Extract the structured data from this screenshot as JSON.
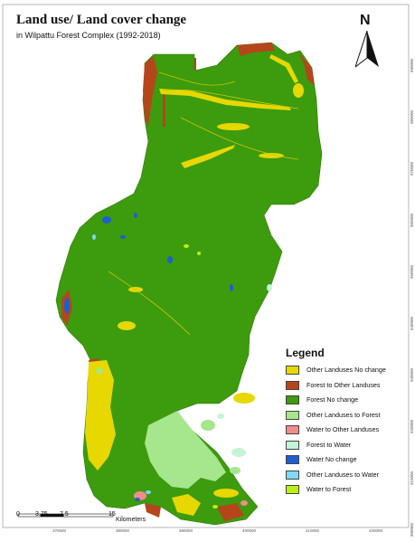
{
  "map": {
    "title": "Land use/ Land cover change",
    "subtitle": "in Wilpattu Forest Complex (1992-2018)",
    "north_label": "N",
    "legend": {
      "title": "Legend",
      "items": [
        {
          "label": "Other Landuses No change",
          "color": "#e6d800"
        },
        {
          "label": "Forest to Other Landuses",
          "color": "#b5461b"
        },
        {
          "label": "Forest No change",
          "color": "#3d9b0e"
        },
        {
          "label": "Other Landuses to Forest",
          "color": "#a6e68c"
        },
        {
          "label": "Water to Other Landuses",
          "color": "#f08c8c"
        },
        {
          "label": "Forest to Water",
          "color": "#c4f4d6"
        },
        {
          "label": "Water No change",
          "color": "#1d5fd1"
        },
        {
          "label": "Other Landuses to Water",
          "color": "#7fd8f5"
        },
        {
          "label": "Water to Forest",
          "color": "#b8f214"
        }
      ]
    },
    "scale_bar": {
      "labels": [
        "0",
        "3.75",
        "7.5",
        "15"
      ],
      "unit": "Kilometers"
    },
    "x_ticks": [
      "370000",
      "380000",
      "390000",
      "400000",
      "410000",
      "420000"
    ],
    "y_ticks": [
      "990000",
      "980000",
      "970000",
      "960000",
      "950000",
      "940000",
      "930000",
      "920000",
      "910000",
      "900000"
    ]
  }
}
